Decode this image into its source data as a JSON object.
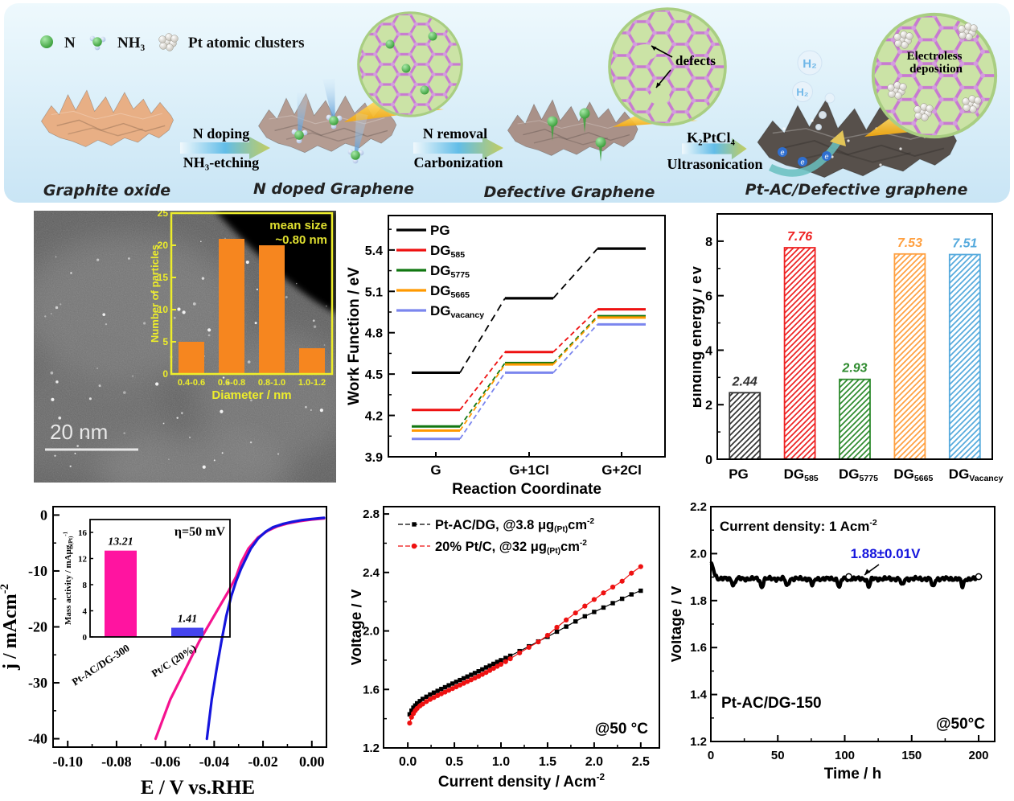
{
  "schematic": {
    "legend": [
      {
        "icon": "n-atom-icon",
        "label": "N"
      },
      {
        "icon": "nh3-molecule-icon",
        "label": "NH₃"
      },
      {
        "icon": "pt-cluster-icon",
        "label": "Pt atomic clusters"
      }
    ],
    "stages": [
      "Graphite oxide",
      "N doped Graphene",
      "Defective Graphene",
      "Pt-AC/Defective graphene"
    ],
    "arrows": [
      {
        "top": "N doping",
        "bottom": "NH₃-etching"
      },
      {
        "top": "N removal",
        "bottom": "Carbonization"
      },
      {
        "top": "K₂PtCl₄",
        "bottom": "Ultrasonication"
      }
    ],
    "annotations": {
      "defects": "defects",
      "electroless_line1": "Electroless",
      "electroless_line2": "deposition",
      "h2": "H₂",
      "electron": "e"
    }
  },
  "tem": {
    "scale_bar": "20 nm"
  },
  "chart_data": [
    {
      "id": "hist",
      "type": "bar",
      "title_line1": "mean size",
      "title_line2": "~0.80 nm",
      "categories": [
        "0.4-0.6",
        "0.6-0.8",
        "0.8-1.0",
        "1.0-1.2"
      ],
      "values": [
        5,
        21,
        20,
        4
      ],
      "xlabel": "Diameter / nm",
      "ylabel": "Number of particles",
      "ylim": [
        0,
        25
      ],
      "yticks": [
        0,
        5,
        10,
        15,
        20,
        25
      ],
      "bar_color": "#F6861F",
      "axis_color": "#EDED2B"
    },
    {
      "id": "wf",
      "type": "line-steps",
      "categories": [
        "G",
        "G+1Cl",
        "G+2Cl"
      ],
      "series": [
        {
          "name_main": "PG",
          "name_sub": "",
          "color": "#000000",
          "values": [
            4.51,
            5.05,
            5.41
          ]
        },
        {
          "name_main": "DG",
          "name_sub": "585",
          "color": "#EE1111",
          "values": [
            4.24,
            4.66,
            4.97
          ]
        },
        {
          "name_main": "DG",
          "name_sub": "5775",
          "color": "#117711",
          "values": [
            4.12,
            4.58,
            4.92
          ]
        },
        {
          "name_main": "DG",
          "name_sub": "5665",
          "color": "#FF9900",
          "values": [
            4.09,
            4.57,
            4.91
          ]
        },
        {
          "name_main": "DG",
          "name_sub": "vacancy",
          "color": "#7B86EE",
          "values": [
            4.03,
            4.51,
            4.86
          ]
        }
      ],
      "xlabel": "Reaction Coordinate",
      "ylabel": "Work Function / eV",
      "ylim": [
        3.9,
        5.65
      ],
      "yticks": [
        3.9,
        4.2,
        4.5,
        4.8,
        5.1,
        5.4
      ]
    },
    {
      "id": "be",
      "type": "bar",
      "categories": [
        {
          "main": "PG",
          "sub": ""
        },
        {
          "main": "DG",
          "sub": "585"
        },
        {
          "main": "DG",
          "sub": "5775"
        },
        {
          "main": "DG",
          "sub": "5665"
        },
        {
          "main": "DG",
          "sub": "Vacancy"
        }
      ],
      "values": [
        2.44,
        7.76,
        2.93,
        7.53,
        7.51
      ],
      "value_labels": [
        "2.44",
        "7.76",
        "2.93",
        "7.53",
        "7.51"
      ],
      "colors": [
        "#333333",
        "#EE2222",
        "#2E8B2E",
        "#FFA040",
        "#55AADD"
      ],
      "ylabel": "Binding energy / eV",
      "ylim": [
        0,
        9
      ],
      "yticks": [
        0,
        2,
        4,
        6,
        8
      ]
    },
    {
      "id": "lsv",
      "type": "line",
      "xlabel": "E / V vs.RHE",
      "ylabel_parts": [
        {
          "t": "j / mAcm"
        },
        {
          "sup": "-2"
        }
      ],
      "xlim": [
        -0.106,
        0.006
      ],
      "ylim": [
        -41.5,
        1.5
      ],
      "xticks": [
        -0.1,
        -0.08,
        -0.06,
        -0.04,
        -0.02,
        0.0
      ],
      "yticks": [
        0,
        -10,
        -20,
        -30,
        -40
      ],
      "series": [
        {
          "name": "Pt-AC/DG",
          "color": "#F5128F",
          "points": [
            [
              0.005,
              -0.6
            ],
            [
              0.0,
              -0.8
            ],
            [
              -0.005,
              -1.1
            ],
            [
              -0.01,
              -1.5
            ],
            [
              -0.014,
              -2.0
            ],
            [
              -0.018,
              -2.8
            ],
            [
              -0.022,
              -4.0
            ],
            [
              -0.026,
              -6.0
            ],
            [
              -0.029,
              -8.5
            ],
            [
              -0.031,
              -11.0
            ],
            [
              -0.034,
              -13.5
            ],
            [
              -0.038,
              -16.5
            ],
            [
              -0.042,
              -19.5
            ],
            [
              -0.046,
              -22.5
            ],
            [
              -0.05,
              -26.0
            ],
            [
              -0.054,
              -29.5
            ],
            [
              -0.058,
              -33.0
            ],
            [
              -0.061,
              -36.5
            ],
            [
              -0.064,
              -40.0
            ]
          ]
        },
        {
          "name": "Pt/C",
          "color": "#1515DD",
          "points": [
            [
              0.005,
              -0.5
            ],
            [
              0.0,
              -0.7
            ],
            [
              -0.004,
              -0.9
            ],
            [
              -0.008,
              -1.2
            ],
            [
              -0.012,
              -1.6
            ],
            [
              -0.016,
              -2.2
            ],
            [
              -0.019,
              -3.0
            ],
            [
              -0.022,
              -4.2
            ],
            [
              -0.025,
              -6.0
            ],
            [
              -0.027,
              -7.8
            ],
            [
              -0.029,
              -9.6
            ],
            [
              -0.031,
              -11.8
            ],
            [
              -0.033,
              -14.5
            ],
            [
              -0.035,
              -18.0
            ],
            [
              -0.037,
              -22.5
            ],
            [
              -0.039,
              -27.5
            ],
            [
              -0.041,
              -33.0
            ],
            [
              -0.043,
              -40.0
            ]
          ]
        }
      ],
      "inset": {
        "type": "bar",
        "categories": [
          "Pt-AC/DG-300",
          "Pt/C (20%)"
        ],
        "values": [
          13.21,
          1.41
        ],
        "value_labels": [
          "13.21",
          "1.41"
        ],
        "colors": [
          "#FF14A0",
          "#4444EE"
        ],
        "annotation": "η=50 mV",
        "ylabel_parts": [
          {
            "t": "Mass activity / mAμg"
          },
          {
            "sub": "(Pt)"
          },
          {
            "sup": "-1"
          }
        ],
        "ylim": [
          0,
          18
        ],
        "yticks": [
          0,
          4,
          8,
          12,
          16
        ]
      }
    },
    {
      "id": "fc",
      "type": "scatter-line",
      "xlabel_parts": [
        {
          "t": "Current density / Acm"
        },
        {
          "sup": "-2"
        }
      ],
      "ylabel": "Voltage / V",
      "annotation": "@50 °C",
      "xlim": [
        -0.26,
        2.7
      ],
      "ylim": [
        1.2,
        2.85
      ],
      "xticks": [
        0.0,
        0.5,
        1.0,
        1.5,
        2.0,
        2.5
      ],
      "yticks": [
        1.2,
        1.6,
        2.0,
        2.4,
        2.8
      ],
      "series": [
        {
          "marker": "square",
          "color": "#000000",
          "label_parts": [
            {
              "t": "Pt-AC/DG, @3.8 μg"
            },
            {
              "sub": "(Pt)"
            },
            {
              "t": "cm"
            },
            {
              "sup": "-2"
            }
          ],
          "points": [
            [
              0.02,
              1.43
            ],
            [
              0.04,
              1.455
            ],
            [
              0.06,
              1.475
            ],
            [
              0.08,
              1.49
            ],
            [
              0.1,
              1.505
            ],
            [
              0.13,
              1.52
            ],
            [
              0.16,
              1.535
            ],
            [
              0.2,
              1.55
            ],
            [
              0.24,
              1.565
            ],
            [
              0.28,
              1.578
            ],
            [
              0.32,
              1.59
            ],
            [
              0.36,
              1.603
            ],
            [
              0.4,
              1.615
            ],
            [
              0.44,
              1.628
            ],
            [
              0.48,
              1.64
            ],
            [
              0.52,
              1.652
            ],
            [
              0.56,
              1.664
            ],
            [
              0.6,
              1.676
            ],
            [
              0.64,
              1.688
            ],
            [
              0.68,
              1.7
            ],
            [
              0.72,
              1.712
            ],
            [
              0.76,
              1.724
            ],
            [
              0.8,
              1.737
            ],
            [
              0.84,
              1.75
            ],
            [
              0.88,
              1.762
            ],
            [
              0.92,
              1.775
            ],
            [
              0.96,
              1.788
            ],
            [
              1.0,
              1.8
            ],
            [
              1.05,
              1.815
            ],
            [
              1.1,
              1.83
            ],
            [
              1.2,
              1.862
            ],
            [
              1.3,
              1.895
            ],
            [
              1.4,
              1.928
            ],
            [
              1.5,
              1.96
            ],
            [
              1.6,
              1.995
            ],
            [
              1.7,
              2.03
            ],
            [
              1.8,
              2.065
            ],
            [
              1.9,
              2.1
            ],
            [
              2.0,
              2.13
            ],
            [
              2.1,
              2.16
            ],
            [
              2.2,
              2.19
            ],
            [
              2.3,
              2.22
            ],
            [
              2.4,
              2.25
            ],
            [
              2.5,
              2.275
            ]
          ]
        },
        {
          "marker": "circle",
          "color": "#EE1111",
          "label_parts": [
            {
              "t": "20% Pt/C, @32 μg"
            },
            {
              "sub": "(Pt)"
            },
            {
              "t": "cm"
            },
            {
              "sup": "-2"
            }
          ],
          "points": [
            [
              0.02,
              1.37
            ],
            [
              0.04,
              1.41
            ],
            [
              0.06,
              1.435
            ],
            [
              0.08,
              1.455
            ],
            [
              0.1,
              1.47
            ],
            [
              0.13,
              1.487
            ],
            [
              0.16,
              1.5
            ],
            [
              0.2,
              1.517
            ],
            [
              0.24,
              1.532
            ],
            [
              0.28,
              1.545
            ],
            [
              0.32,
              1.558
            ],
            [
              0.36,
              1.57
            ],
            [
              0.4,
              1.582
            ],
            [
              0.44,
              1.594
            ],
            [
              0.48,
              1.606
            ],
            [
              0.52,
              1.618
            ],
            [
              0.56,
              1.63
            ],
            [
              0.6,
              1.642
            ],
            [
              0.64,
              1.654
            ],
            [
              0.68,
              1.666
            ],
            [
              0.72,
              1.678
            ],
            [
              0.76,
              1.69
            ],
            [
              0.8,
              1.703
            ],
            [
              0.84,
              1.716
            ],
            [
              0.88,
              1.73
            ],
            [
              0.92,
              1.744
            ],
            [
              0.96,
              1.758
            ],
            [
              1.0,
              1.772
            ],
            [
              1.05,
              1.79
            ],
            [
              1.1,
              1.81
            ],
            [
              1.2,
              1.85
            ],
            [
              1.3,
              1.888
            ],
            [
              1.4,
              1.925
            ],
            [
              1.5,
              1.97
            ],
            [
              1.6,
              2.025
            ],
            [
              1.7,
              2.075
            ],
            [
              1.8,
              2.123
            ],
            [
              1.9,
              2.17
            ],
            [
              2.0,
              2.215
            ],
            [
              2.1,
              2.26
            ],
            [
              2.2,
              2.3
            ],
            [
              2.3,
              2.34
            ],
            [
              2.4,
              2.395
            ],
            [
              2.5,
              2.44
            ]
          ]
        }
      ]
    },
    {
      "id": "stab",
      "type": "line",
      "annotation_parts": [
        {
          "t": "Current density: 1 Acm"
        },
        {
          "sup": "-2"
        }
      ],
      "value_label": "1.88±0.01V",
      "value_label_color": "#1515DD",
      "sample_label": "Pt-AC/DG-150",
      "temp_label": "@50°C",
      "xlabel": "Time / h",
      "ylabel": "Voltage / V",
      "xlim": [
        0,
        212
      ],
      "ylim": [
        1.2,
        2.2
      ],
      "xticks": [
        0,
        50,
        100,
        150,
        200
      ],
      "yticks": [
        1.2,
        1.4,
        1.6,
        1.8,
        2.0,
        2.2
      ],
      "trace": {
        "base": 1.893,
        "start_spike": 0.06,
        "dips": [
          17,
          38,
          57,
          76,
          96,
          118,
          143,
          166,
          188
        ],
        "end": 200,
        "markers": [
          103,
          200
        ]
      }
    }
  ]
}
